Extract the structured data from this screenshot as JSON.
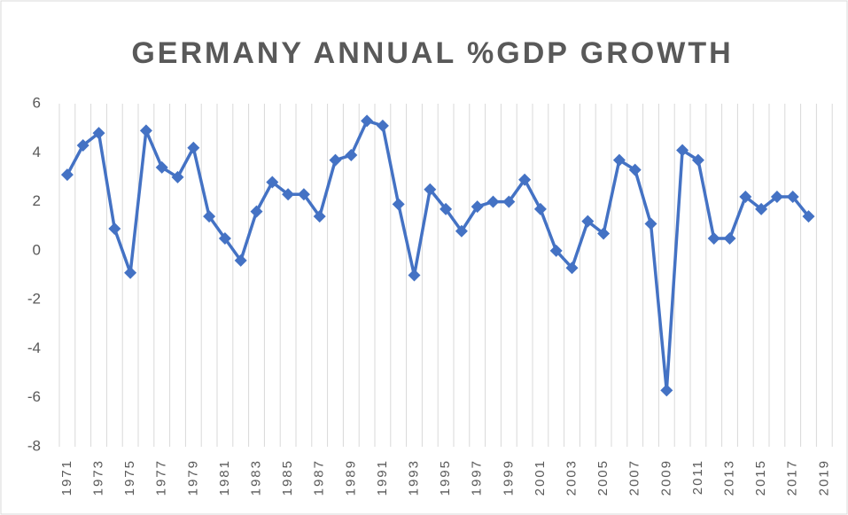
{
  "chart_data": {
    "type": "line",
    "title": "GERMANY ANNUAL %GDP GROWTH",
    "categories": [
      "1971",
      null,
      "1973",
      null,
      "1975",
      null,
      "1977",
      null,
      "1979",
      null,
      "1981",
      null,
      "1983",
      null,
      "1985",
      null,
      "1987",
      null,
      "1989",
      null,
      "1991",
      null,
      "1993",
      null,
      "1995",
      null,
      "1997",
      null,
      "1999",
      null,
      "2001",
      null,
      "2003",
      null,
      "2005",
      null,
      "2007",
      null,
      "2009",
      null,
      "2011",
      null,
      "2013",
      null,
      "2015",
      null,
      "2017",
      null,
      "2019"
    ],
    "values": [
      3.1,
      4.3,
      4.8,
      0.9,
      -0.9,
      4.9,
      3.4,
      3.0,
      4.2,
      1.4,
      0.5,
      -0.4,
      1.6,
      2.8,
      2.3,
      2.3,
      1.4,
      3.7,
      3.9,
      5.3,
      5.1,
      1.9,
      -1.0,
      2.5,
      1.7,
      0.8,
      1.8,
      2.0,
      2.0,
      2.9,
      1.7,
      0.0,
      -0.7,
      1.2,
      0.7,
      3.7,
      3.3,
      1.1,
      -5.7,
      4.1,
      3.7,
      0.5,
      0.5,
      2.2,
      1.7,
      2.2,
      2.2,
      1.4,
      null
    ],
    "color": "#4472c4",
    "ylim": [
      -8,
      6
    ],
    "yticks": [
      -8,
      -6,
      -4,
      -2,
      0,
      2,
      4,
      6
    ],
    "xgrid": true
  }
}
